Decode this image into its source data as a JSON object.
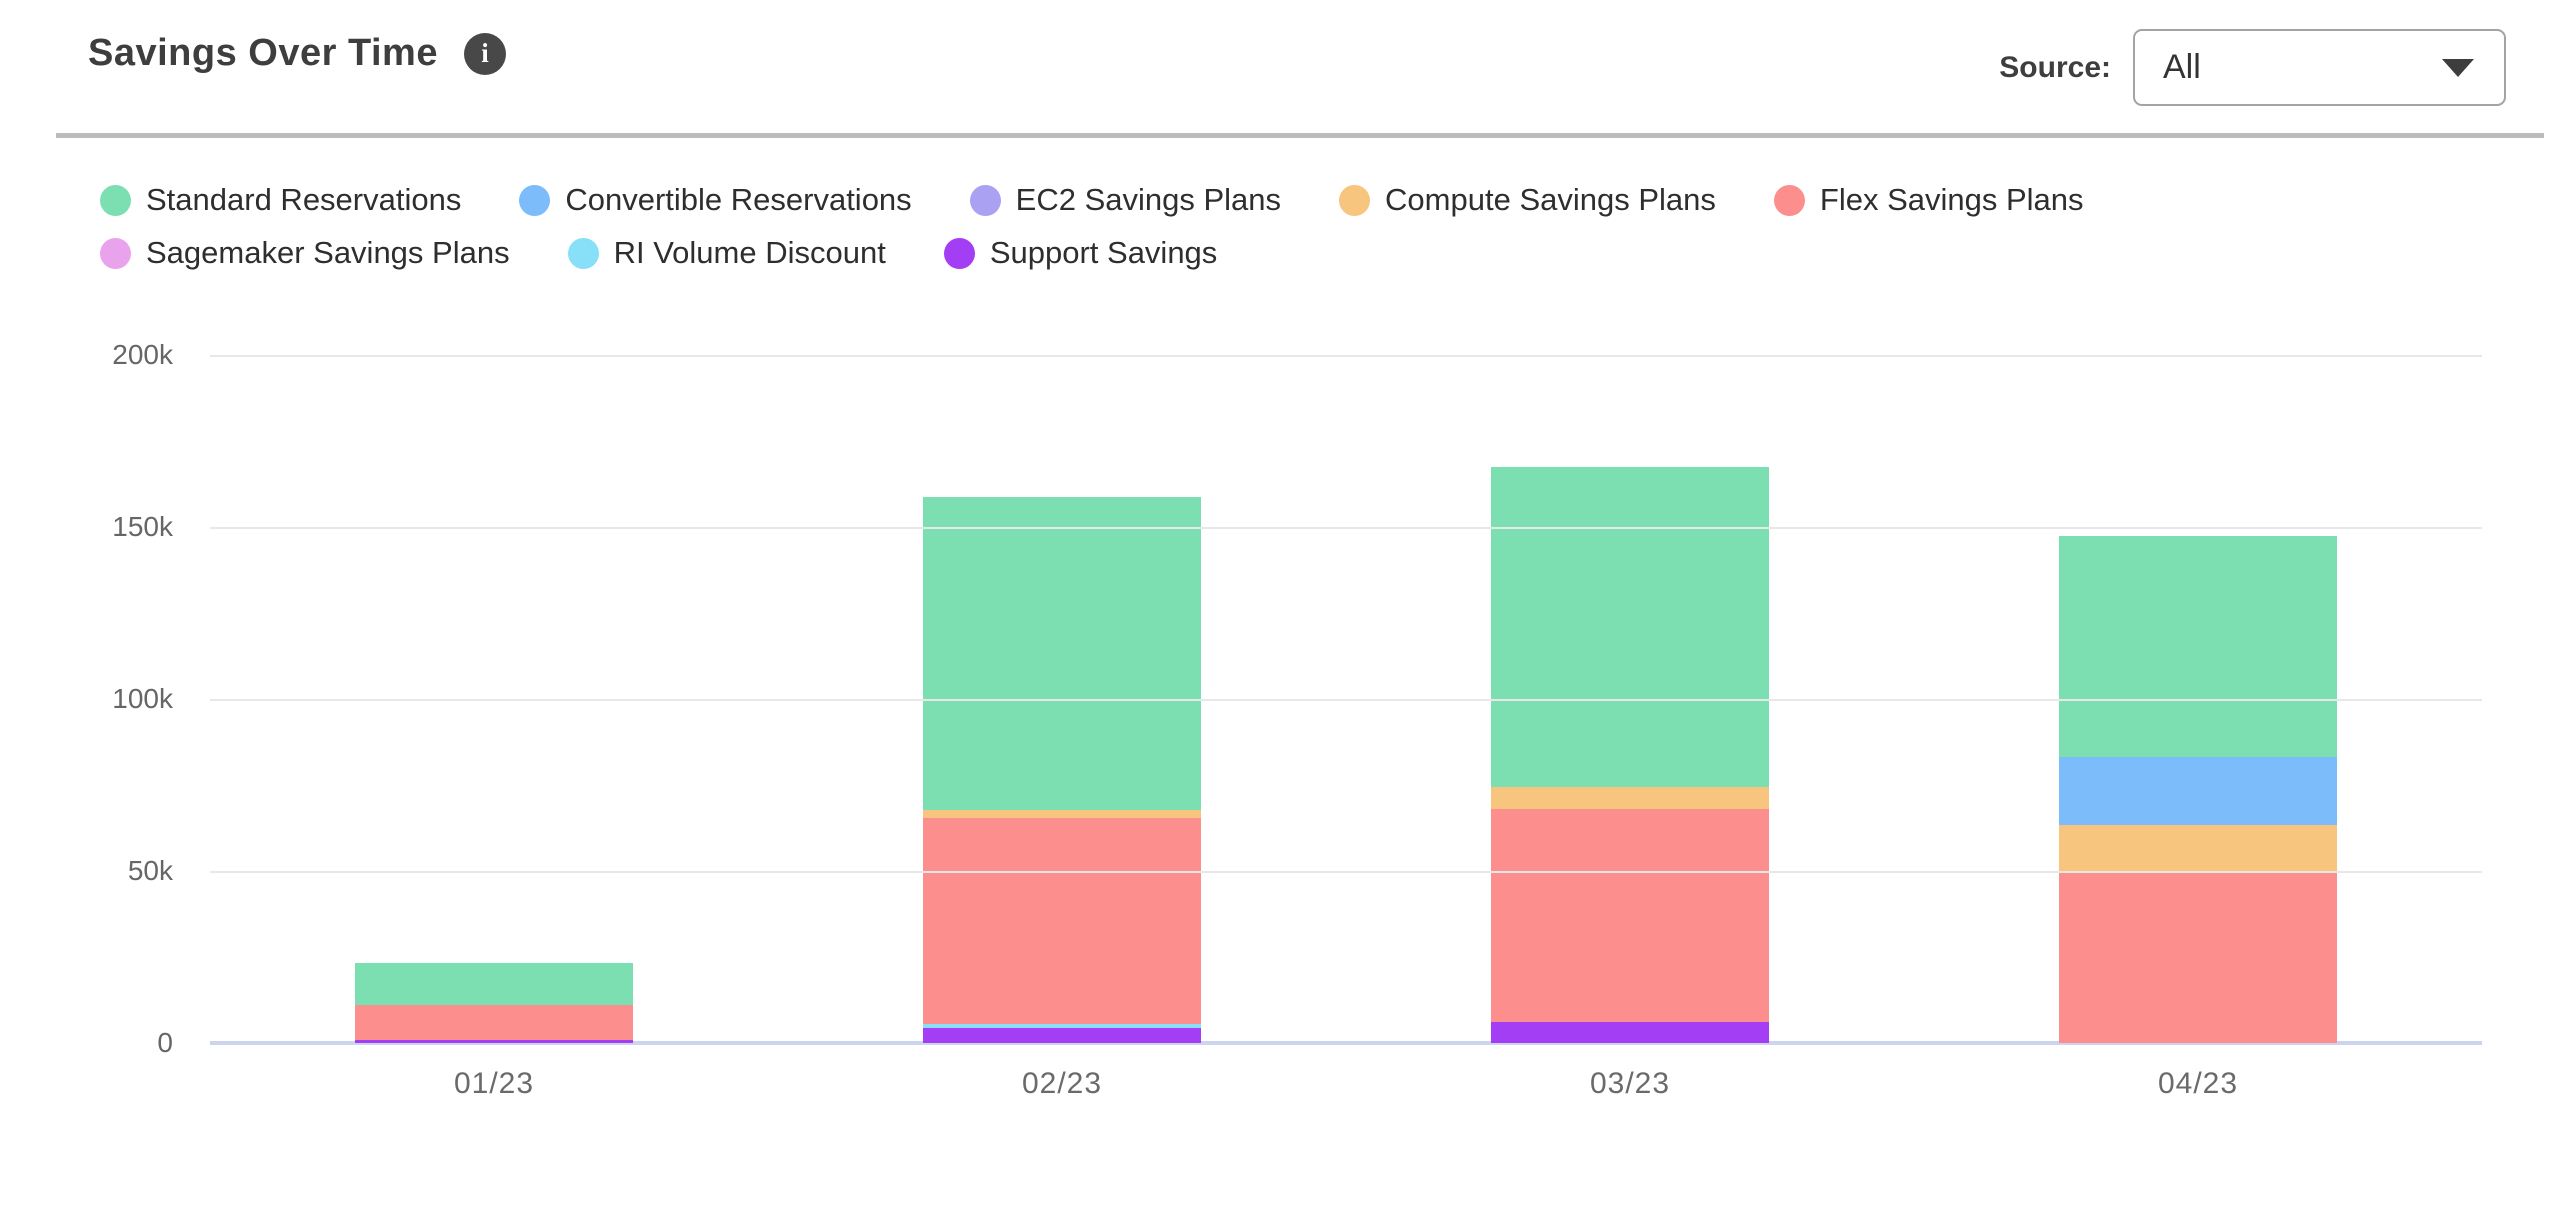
{
  "header": {
    "title": "Savings Over Time",
    "info_icon_glyph": "i",
    "source_label": "Source:",
    "source_value": "All"
  },
  "chart_data": {
    "type": "bar",
    "stacked": true,
    "title": "Savings Over Time",
    "xlabel": "",
    "ylabel": "",
    "unit_note": "values estimated in thousands (k) as drawn; y axis 0-200k",
    "ylim_k": [
      0,
      200
    ],
    "yticks_top_to_bottom": [
      "200k",
      "150k",
      "100k",
      "50k",
      "0"
    ],
    "grid": "horizontal",
    "legend_position": "top",
    "categories": [
      "01/23",
      "02/23",
      "03/23",
      "04/23"
    ],
    "series": [
      {
        "name": "Standard Reservations",
        "color": "#7bdfb2",
        "values_k": [
          12.3,
          90.9,
          93.1,
          64.2
        ]
      },
      {
        "name": "Convertible Reservations",
        "color": "#7cbcfa",
        "values_k": [
          0,
          0,
          0,
          19.6
        ]
      },
      {
        "name": "EC2 Savings Plans",
        "color": "#aba1f2",
        "values_k": [
          0,
          0,
          0,
          0
        ]
      },
      {
        "name": "Compute Savings Plans",
        "color": "#f8c57e",
        "values_k": [
          0,
          2.3,
          6.5,
          13.8
        ]
      },
      {
        "name": "Flex Savings Plans",
        "color": "#fd8e8e",
        "values_k": [
          10.2,
          60.0,
          61.9,
          49.7
        ]
      },
      {
        "name": "Sagemaker Savings Plans",
        "color": "#e9a3ec",
        "values_k": [
          0,
          0,
          0,
          0
        ]
      },
      {
        "name": "RI Volume Discount",
        "color": "#87dff8",
        "values_k": [
          0,
          1.0,
          0,
          0
        ]
      },
      {
        "name": "Support Savings",
        "color": "#a33ef5",
        "values_k": [
          0.9,
          4.4,
          6.0,
          0
        ]
      }
    ],
    "totals_k": [
      23.4,
      158.6,
      167.5,
      147.3
    ],
    "colors": {
      "gridline": "#e8e8e8",
      "axis_line": "#ccd5ed",
      "tick_text": "#666666",
      "legend_text": "#2e2e2e",
      "title_text": "#3e3e3e",
      "divider": "#bcbcbc"
    }
  }
}
